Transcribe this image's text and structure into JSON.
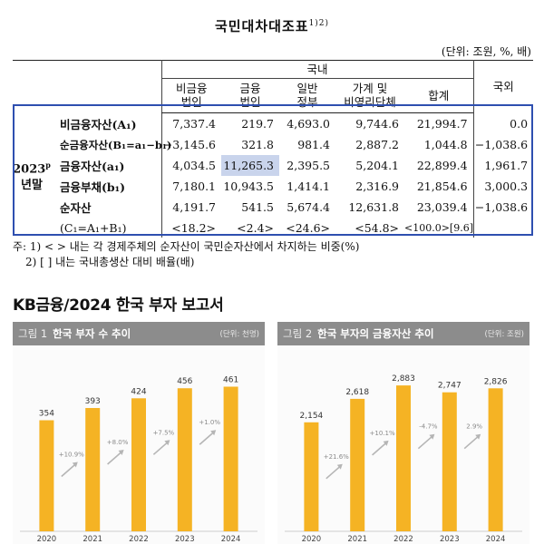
{
  "table": {
    "title": "국민대차대조표",
    "title_sup": "1)2)",
    "unit_note": "(단위: 조원, %, 배)",
    "col_group": "국내",
    "columns": [
      {
        "l1": "비금융",
        "l2": "법인"
      },
      {
        "l1": "금융",
        "l2": "법인"
      },
      {
        "l1": "일반",
        "l2": "정부"
      },
      {
        "l1": "가계 및",
        "l2": "비영리단체"
      },
      {
        "l1": "합계",
        "l2": ""
      }
    ],
    "col_foreign": "국외",
    "row_group": {
      "year": "2023",
      "sup": "p",
      "suffix": "년말"
    },
    "rows": [
      {
        "label": "비금융자산(A₁)",
        "values": [
          "7,337.4",
          "219.7",
          "4,693.0",
          "9,744.6",
          "21,994.7",
          "0.0"
        ]
      },
      {
        "label": "순금융자산(B₁=a₁−b₁)",
        "values": [
          "−3,145.6",
          "321.8",
          "981.4",
          "2,887.2",
          "1,044.8",
          "−1,038.6"
        ]
      },
      {
        "label": "금융자산(a₁)",
        "values": [
          "4,034.5",
          "11,265.3",
          "2,395.5",
          "5,204.1",
          "22,899.4",
          "1,961.7"
        ]
      },
      {
        "label": "금융부채(b₁)",
        "values": [
          "7,180.1",
          "10,943.5",
          "1,414.1",
          "2,316.9",
          "21,854.6",
          "3,000.3"
        ]
      },
      {
        "label": "순자산",
        "values": [
          "4,191.7",
          "541.5",
          "5,674.4",
          "12,631.8",
          "23,039.4",
          "−1,038.6"
        ]
      },
      {
        "label": "(C₁=A₁+B₁)",
        "values": [
          "<18.2>",
          "<2.4>",
          "<24.6>",
          "<54.8>",
          "<100.0>[9.6]",
          ""
        ]
      }
    ],
    "notes": [
      "주: 1) <  > 내는 각 경제주체의 순자산이 국민순자산에서 차지하는 비중(%)",
      "2) [   ] 내는 국내총생산 대비 배율(배)"
    ]
  },
  "report_title": "KB금융/2024 한국 부자 보고서",
  "bar_color": "#f5b324",
  "figures": [
    {
      "fig_no": "그림 1",
      "title": "한국 부자 수 추이",
      "unit": "(단위: 천명)",
      "chart_data": {
        "type": "bar",
        "categories": [
          "2020",
          "2021",
          "2022",
          "2023",
          "2024"
        ],
        "values": [
          354,
          393,
          424,
          456,
          461
        ],
        "value_labels": [
          "354",
          "393",
          "424",
          "456",
          "461"
        ],
        "growth": [
          "+10.9%",
          "+8.0%",
          "+7.5%",
          "+1.0%"
        ],
        "ylim": [
          0,
          500
        ]
      }
    },
    {
      "fig_no": "그림 2",
      "title": "한국 부자의 금융자산 추이",
      "unit": "(단위: 조원)",
      "chart_data": {
        "type": "bar",
        "categories": [
          "2020",
          "2021",
          "2022",
          "2023",
          "2024"
        ],
        "values": [
          2154,
          2618,
          2883,
          2747,
          2826
        ],
        "value_labels": [
          "2,154",
          "2,618",
          "2,883",
          "2,747",
          "2,826"
        ],
        "growth": [
          "+21.6%",
          "+10.1%",
          "-4.7%",
          "2.9%"
        ],
        "ylim": [
          0,
          3100
        ]
      }
    }
  ]
}
